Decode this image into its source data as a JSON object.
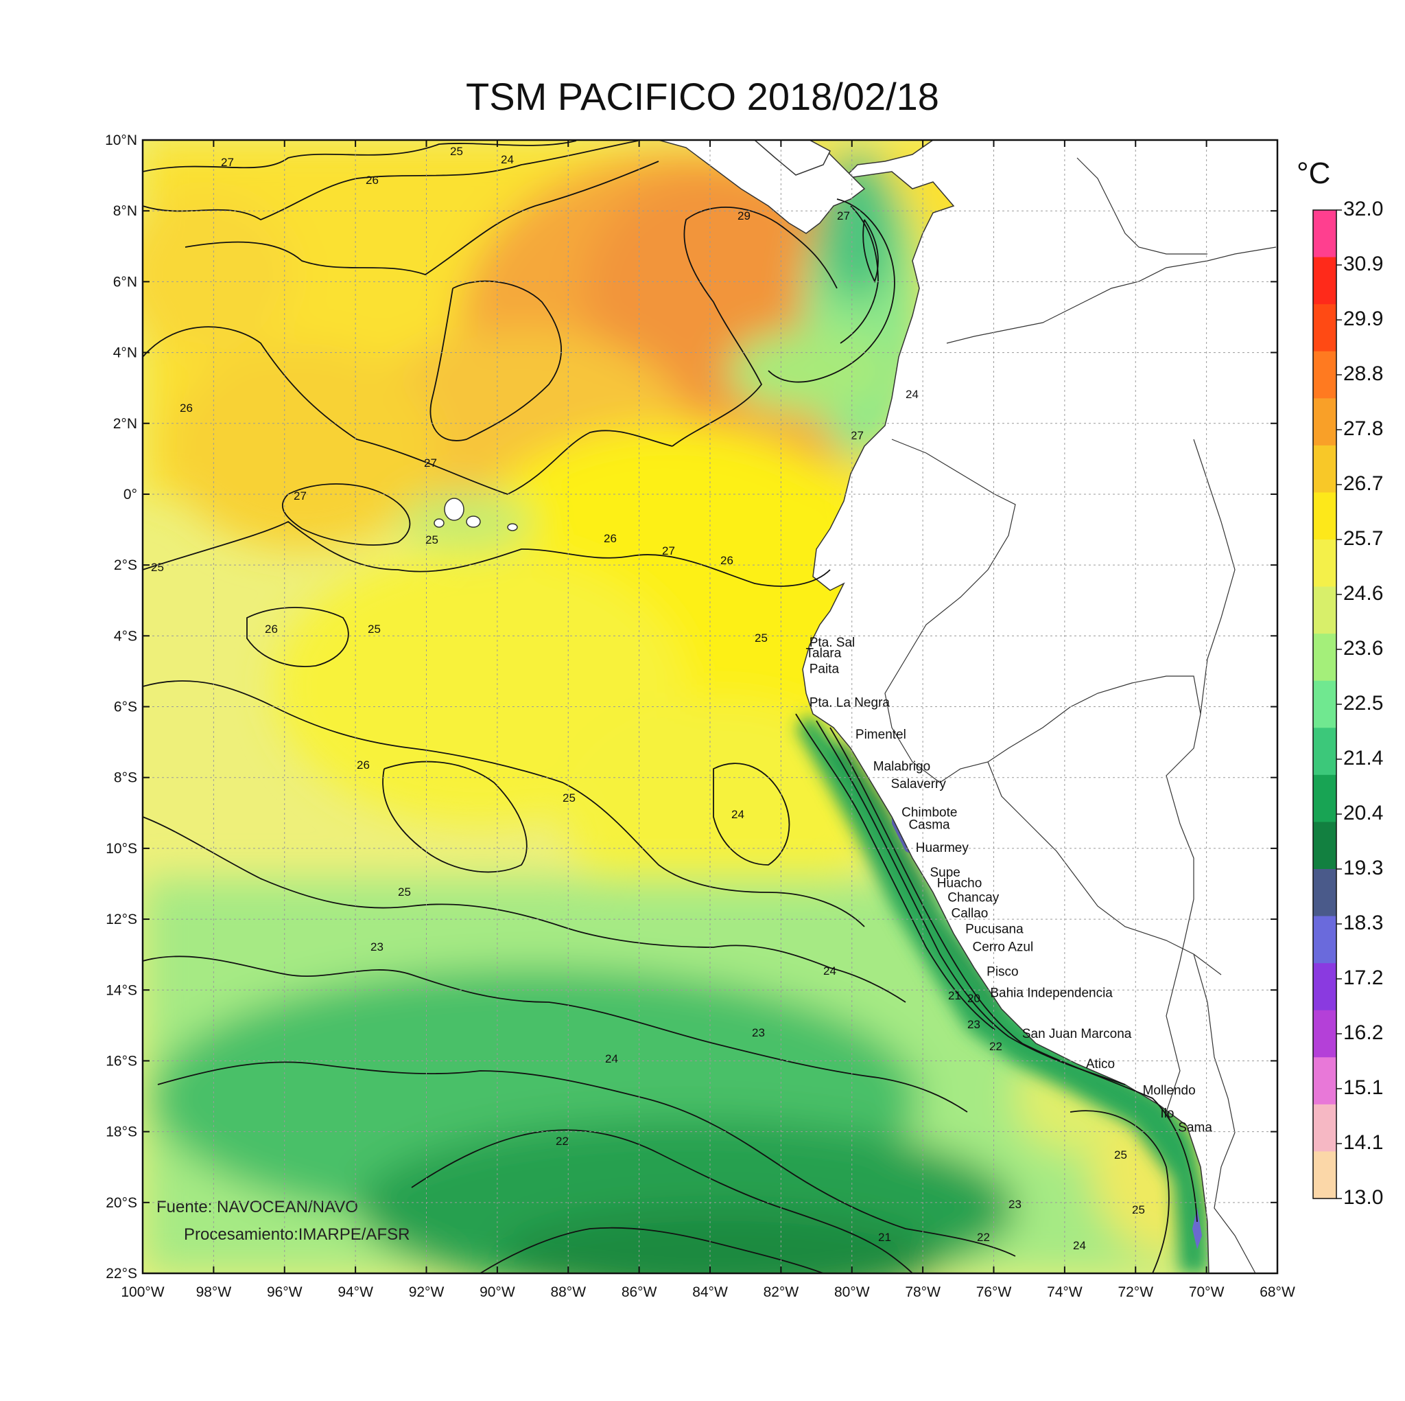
{
  "title": "TSM PACIFICO 2018/02/18",
  "map": {
    "lon_range": [
      -100,
      -68
    ],
    "lat_range": [
      -22,
      10
    ],
    "lon_ticks": [
      "100°W",
      "98°W",
      "96°W",
      "94°W",
      "92°W",
      "90°W",
      "88°W",
      "86°W",
      "84°W",
      "82°W",
      "80°W",
      "78°W",
      "76°W",
      "74°W",
      "72°W",
      "70°W",
      "68°W"
    ],
    "lat_ticks": [
      "10°N",
      "8°N",
      "6°N",
      "4°N",
      "2°N",
      "0°",
      "2°S",
      "4°S",
      "6°S",
      "8°S",
      "10°S",
      "12°S",
      "14°S",
      "16°S",
      "18°S",
      "20°S",
      "22°S"
    ],
    "gridlines": true,
    "source_note": "Fuente: NAVOCEAN/NAVO",
    "processing_note": "Procesamiento:IMARPE/AFSR"
  },
  "colorbar": {
    "unit": "°C",
    "labels": [
      "32.0",
      "30.9",
      "29.9",
      "28.8",
      "27.8",
      "26.7",
      "25.7",
      "24.6",
      "23.6",
      "22.5",
      "21.4",
      "20.4",
      "19.3",
      "18.3",
      "17.2",
      "16.2",
      "15.1",
      "14.1",
      "13.0"
    ],
    "colors": [
      "#ff3f8f",
      "#ff2a1a",
      "#ff4a14",
      "#ff7a20",
      "#f9a028",
      "#f8c828",
      "#fde81a",
      "#f4f04a",
      "#d8ef6a",
      "#a4ef7a",
      "#70e890",
      "#3cc87a",
      "#18a454",
      "#128040",
      "#4a5a8a",
      "#6a6adc",
      "#8a3ae0",
      "#b440d8",
      "#e878d8",
      "#f6b8c4",
      "#fbd7a8"
    ]
  },
  "places": [
    "Pta. Sal",
    "Talara",
    "Paita",
    "Pta. La Negra",
    "Pimentel",
    "Malabrigo",
    "Salaverry",
    "Chimbote",
    "Casma",
    "Huarmey",
    "Supe",
    "Huacho",
    "Chancay",
    "Callao",
    "Pucusana",
    "Cerro Azul",
    "Pisco",
    "Bahia Independencia",
    "San Juan Marcona",
    "Atico",
    "Mollendo",
    "Ilo",
    "Sama"
  ],
  "contour_labels": [
    "27",
    "26",
    "25",
    "24",
    "27",
    "29",
    "24",
    "27",
    "27",
    "26",
    "27",
    "26",
    "25",
    "25",
    "27",
    "26",
    "25",
    "26",
    "25",
    "26",
    "25",
    "24",
    "25",
    "24",
    "23",
    "23",
    "24",
    "22",
    "21",
    "22",
    "23",
    "24",
    "25",
    "25",
    "21",
    "20",
    "22",
    "23"
  ]
}
